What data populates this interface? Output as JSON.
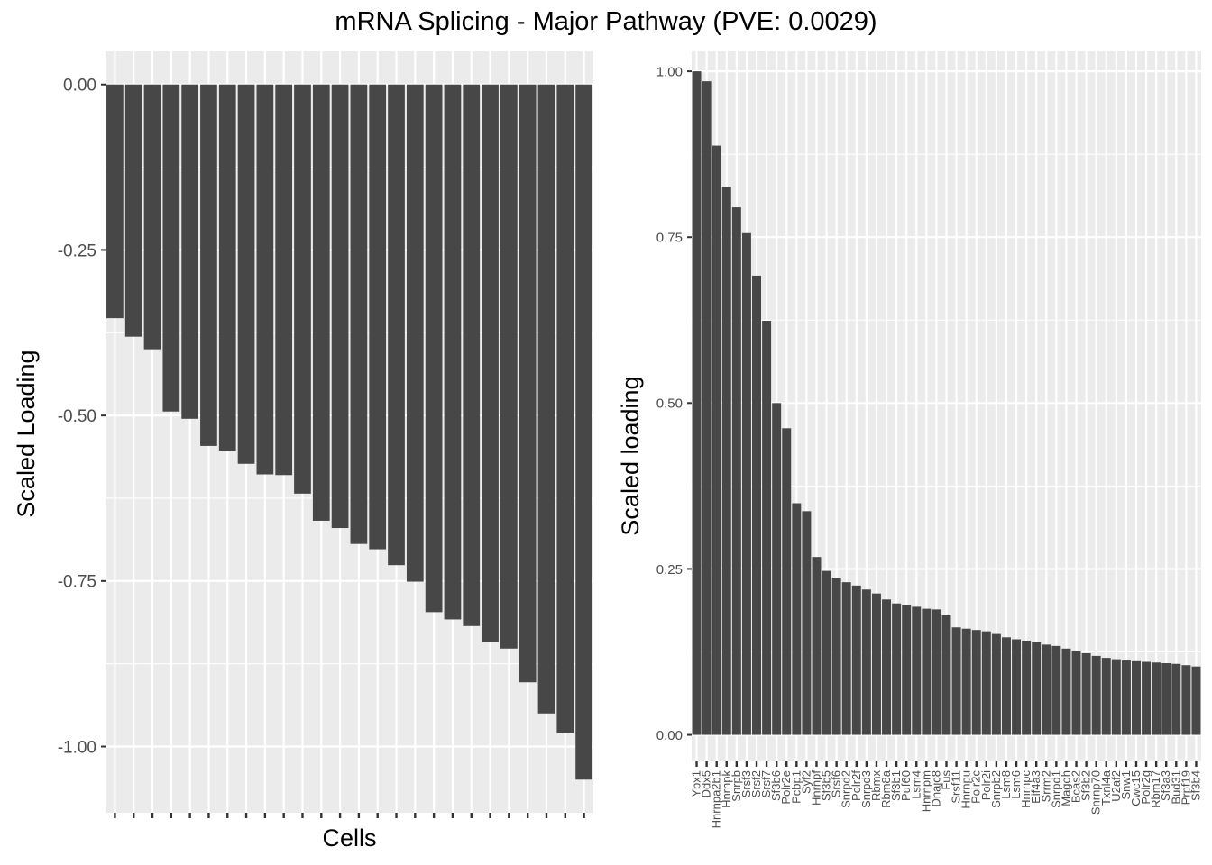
{
  "title": "mRNA Splicing - Major Pathway (PVE: 0.0029)",
  "colors": {
    "panel_bg": "#ebebeb",
    "grid": "#ffffff",
    "bar": "#474747",
    "tick_text": "#4d4d4d",
    "tick_mark": "#333333"
  },
  "chart_data": [
    {
      "type": "bar",
      "xlabel": "Cells",
      "ylabel": "Scaled Loading",
      "ylim": [
        -1.1,
        0.05
      ],
      "yticks": [
        0.0,
        -0.25,
        -0.5,
        -0.75,
        -1.0
      ],
      "ytick_labels": [
        "0.00",
        "-0.25",
        "-0.50",
        "-0.75",
        "-1.00"
      ],
      "categories_labeled": false,
      "values": [
        -0.353,
        -0.381,
        -0.4,
        -0.494,
        -0.505,
        -0.546,
        -0.553,
        -0.573,
        -0.589,
        -0.59,
        -0.618,
        -0.659,
        -0.67,
        -0.694,
        -0.702,
        -0.726,
        -0.751,
        -0.797,
        -0.808,
        -0.818,
        -0.842,
        -0.852,
        -0.903,
        -0.95,
        -0.98,
        -1.05
      ]
    },
    {
      "type": "bar",
      "xlabel": "",
      "ylabel": "Scaled loading",
      "ylim": [
        -0.04,
        1.03
      ],
      "yticks": [
        0.0,
        0.25,
        0.5,
        0.75,
        1.0
      ],
      "ytick_labels": [
        "0.00",
        "0.25",
        "0.50",
        "0.75",
        "1.00"
      ],
      "categories": [
        "Ybx1",
        "Ddx5",
        "Hnrnpa2b1",
        "Hnrnpk",
        "Snrpb",
        "Srsf3",
        "Srsf2",
        "Srsf7",
        "Sf3b6",
        "Polr2e",
        "Pcbp1",
        "Syf2",
        "Hnrnpf",
        "Sf3b5",
        "Srsf6",
        "Snrpd2",
        "Polr2f",
        "Snrpd3",
        "Rbmx",
        "Rbm8a",
        "Sf3b1",
        "Puf60",
        "Lsm4",
        "Hnrnpm",
        "Dnajc8",
        "Fus",
        "Srsf11",
        "Hnrnpu",
        "Polr2c",
        "Polr2i",
        "Snrpb2",
        "Lsm8",
        "Lsm6",
        "Hnrnpc",
        "Eif4a3",
        "Srrm2",
        "Snrpd1",
        "Magoh",
        "Bcas2",
        "Sf3b2",
        "Snrnp70",
        "Txnl4a",
        "U2af2",
        "Snw1",
        "Cwc15",
        "Polr2g",
        "Rbm17",
        "Sf3a3",
        "Bud31",
        "Prpf19",
        "Sf3b4"
      ],
      "values": [
        1.0,
        0.985,
        0.888,
        0.826,
        0.795,
        0.756,
        0.692,
        0.624,
        0.5,
        0.462,
        0.349,
        0.337,
        0.268,
        0.247,
        0.237,
        0.23,
        0.225,
        0.219,
        0.213,
        0.204,
        0.198,
        0.195,
        0.193,
        0.19,
        0.189,
        0.18,
        0.162,
        0.16,
        0.158,
        0.156,
        0.152,
        0.147,
        0.144,
        0.142,
        0.14,
        0.136,
        0.134,
        0.13,
        0.126,
        0.123,
        0.119,
        0.116,
        0.114,
        0.112,
        0.111,
        0.11,
        0.109,
        0.108,
        0.107,
        0.105,
        0.103
      ]
    }
  ]
}
